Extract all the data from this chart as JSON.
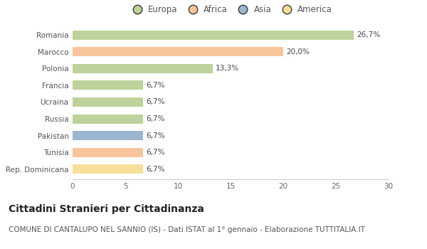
{
  "countries": [
    "Romania",
    "Marocco",
    "Polonia",
    "Francia",
    "Ucraina",
    "Russia",
    "Pakistan",
    "Tunisia",
    "Rep. Dominicana"
  ],
  "values": [
    26.7,
    20.0,
    13.3,
    6.7,
    6.7,
    6.7,
    6.7,
    6.7,
    6.7
  ],
  "labels": [
    "26,7%",
    "20,0%",
    "13,3%",
    "6,7%",
    "6,7%",
    "6,7%",
    "6,7%",
    "6,7%",
    "6,7%"
  ],
  "bar_colors": [
    "#a8c47a",
    "#f5b27a",
    "#a8c47a",
    "#a8c47a",
    "#a8c47a",
    "#a8c47a",
    "#7b9ec4",
    "#f5b27a",
    "#f5d47a"
  ],
  "legend_labels": [
    "Europa",
    "Africa",
    "Asia",
    "America"
  ],
  "legend_colors": [
    "#a8c47a",
    "#f5b27a",
    "#7b9ec4",
    "#f5d47a"
  ],
  "xlim": [
    0,
    30
  ],
  "xticks": [
    0,
    5,
    10,
    15,
    20,
    25,
    30
  ],
  "title": "Cittadini Stranieri per Cittadinanza",
  "subtitle": "COMUNE DI CANTALUPO NEL SANNIO (IS) - Dati ISTAT al 1° gennaio - Elaborazione TUTTITALIA.IT",
  "background_color": "#ffffff",
  "bar_alpha": 0.75,
  "bar_height": 0.55,
  "title_fontsize": 10,
  "subtitle_fontsize": 7.5,
  "label_fontsize": 7.5,
  "tick_fontsize": 7.5,
  "legend_fontsize": 8.5
}
